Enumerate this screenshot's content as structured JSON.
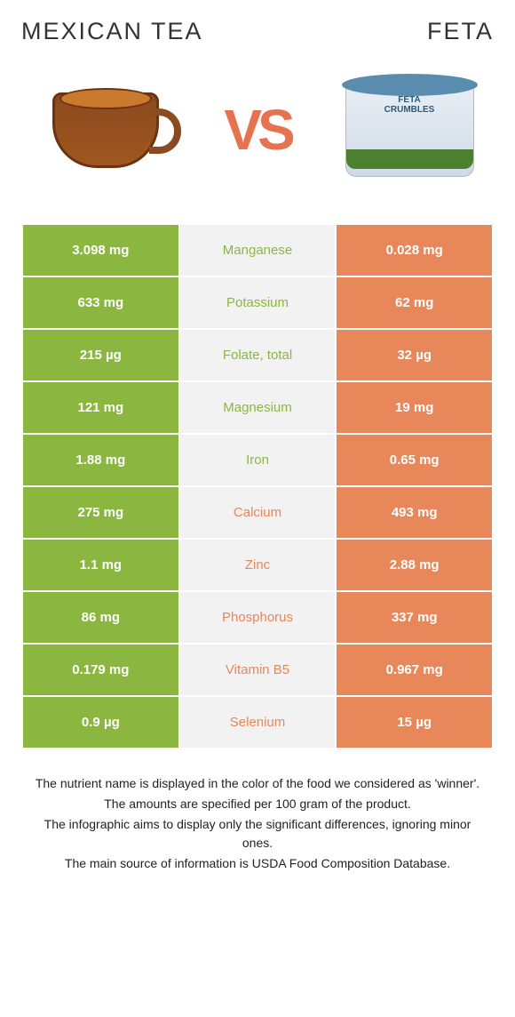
{
  "header": {
    "leftTitle": "MEXICAN TEA",
    "rightTitle": "FETA"
  },
  "hero": {
    "vs": "VS",
    "fetaLabel": "FETA\nCRUMBLES"
  },
  "colors": {
    "green": "#8bb741",
    "orange": "#e88759",
    "midBg": "#f2f2f2",
    "vsColor": "#e67350"
  },
  "table": {
    "rows": [
      {
        "left": "3.098 mg",
        "mid": "Manganese",
        "right": "0.028 mg",
        "winner": "left"
      },
      {
        "left": "633 mg",
        "mid": "Potassium",
        "right": "62 mg",
        "winner": "left"
      },
      {
        "left": "215 µg",
        "mid": "Folate, total",
        "right": "32 µg",
        "winner": "left"
      },
      {
        "left": "121 mg",
        "mid": "Magnesium",
        "right": "19 mg",
        "winner": "left"
      },
      {
        "left": "1.88 mg",
        "mid": "Iron",
        "right": "0.65 mg",
        "winner": "left"
      },
      {
        "left": "275 mg",
        "mid": "Calcium",
        "right": "493 mg",
        "winner": "right"
      },
      {
        "left": "1.1 mg",
        "mid": "Zinc",
        "right": "2.88 mg",
        "winner": "right"
      },
      {
        "left": "86 mg",
        "mid": "Phosphorus",
        "right": "337 mg",
        "winner": "right"
      },
      {
        "left": "0.179 mg",
        "mid": "Vitamin B5",
        "right": "0.967 mg",
        "winner": "right"
      },
      {
        "left": "0.9 µg",
        "mid": "Selenium",
        "right": "15 µg",
        "winner": "right"
      }
    ]
  },
  "footer": {
    "line1": "The nutrient name is displayed in the color of the food we considered as 'winner'.",
    "line2": "The amounts are specified per 100 gram of the product.",
    "line3": "The infographic aims to display only the significant differences, ignoring minor ones.",
    "line4": "The main source of information is USDA Food Composition Database."
  }
}
